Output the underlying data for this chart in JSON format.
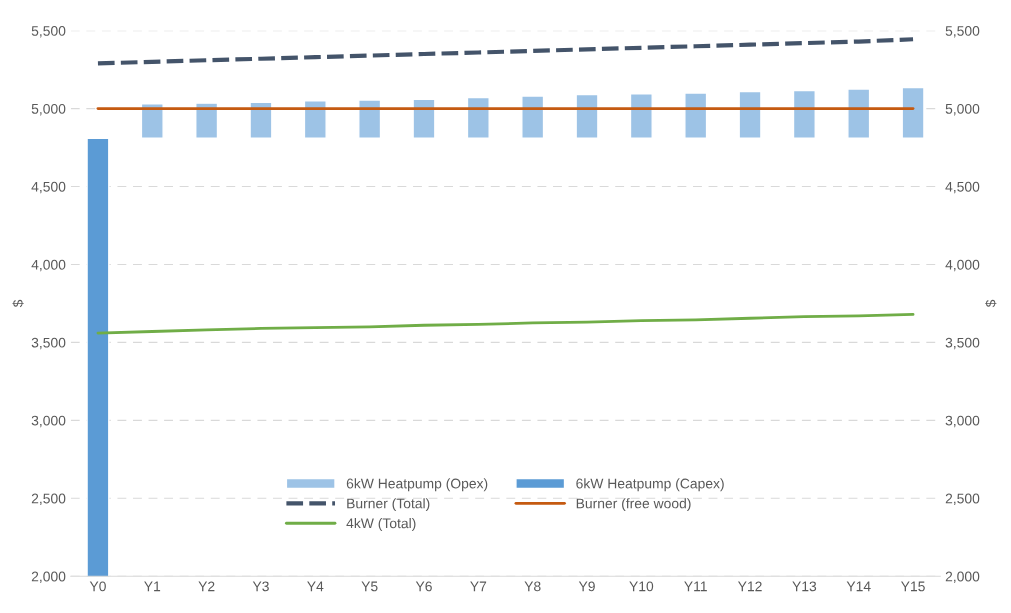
{
  "chart_data": {
    "type": "bar",
    "ylabel": "$",
    "y2label": "$",
    "categories": [
      "Y0",
      "Y1",
      "Y2",
      "Y3",
      "Y4",
      "Y5",
      "Y6",
      "Y7",
      "Y8",
      "Y9",
      "Y10",
      "Y11",
      "Y12",
      "Y13",
      "Y14",
      "Y15"
    ],
    "series": [
      {
        "name": "6kW Heatpump (Opex)",
        "color": "#9dc3e6",
        "base": [
          null,
          4810,
          4810,
          4810,
          4810,
          4810,
          4810,
          4810,
          4810,
          4810,
          4810,
          4810,
          4810,
          4810,
          4810,
          4810
        ],
        "values": [
          null,
          220,
          225,
          230,
          240,
          245,
          250,
          260,
          270,
          280,
          285,
          290,
          300,
          305,
          315,
          325
        ]
      },
      {
        "name": "6kW Heatpump (Capex)",
        "color": "#5b9bd5",
        "values": [
          4810,
          null,
          null,
          null,
          null,
          null,
          null,
          null,
          null,
          null,
          null,
          null,
          null,
          null,
          null,
          null
        ]
      },
      {
        "name": "Burner (Total)",
        "type": "line",
        "line_style": "dashed",
        "color": "#44546a",
        "values": [
          5290,
          5300,
          5310,
          5320,
          5330,
          5340,
          5350,
          5360,
          5370,
          5380,
          5390,
          5400,
          5410,
          5420,
          5430,
          5445
        ]
      },
      {
        "name": "Burner (free wood)",
        "type": "line",
        "line_style": "solid",
        "color": "#c55a11",
        "values": [
          5000,
          5000,
          5000,
          5000,
          5000,
          5000,
          5000,
          5000,
          5000,
          5000,
          5000,
          5000,
          5000,
          5000,
          5000,
          5000
        ]
      },
      {
        "name": "4kW (Total)",
        "type": "line",
        "line_style": "solid",
        "color": "#70ad47",
        "values": [
          3560,
          3570,
          3580,
          3590,
          3595,
          3600,
          3610,
          3615,
          3625,
          3630,
          3640,
          3645,
          3655,
          3665,
          3670,
          3680
        ]
      }
    ],
    "ylim": [
      2000,
      5500
    ],
    "yticks": [
      {
        "value": 2000,
        "label": "2,000"
      },
      {
        "value": 2500,
        "label": "2,500"
      },
      {
        "value": 3000,
        "label": "3,000"
      },
      {
        "value": 3500,
        "label": "3,500"
      },
      {
        "value": 4000,
        "label": "4,000"
      },
      {
        "value": 4500,
        "label": "4,500"
      },
      {
        "value": 5000,
        "label": "5,000"
      },
      {
        "value": 5500,
        "label": "5,500"
      }
    ],
    "y2lim": [
      2000,
      5500
    ],
    "y2ticks": [
      {
        "value": 2000,
        "label": "2,000"
      },
      {
        "value": 2500,
        "label": "2,500"
      },
      {
        "value": 3000,
        "label": "3,000"
      },
      {
        "value": 3500,
        "label": "3,500"
      },
      {
        "value": 4000,
        "label": "4,000"
      },
      {
        "value": 4500,
        "label": "4,500"
      },
      {
        "value": 5000,
        "label": "5,000"
      },
      {
        "value": 5500,
        "label": "5,500"
      }
    ],
    "grid": "y",
    "legend": "bottom"
  }
}
